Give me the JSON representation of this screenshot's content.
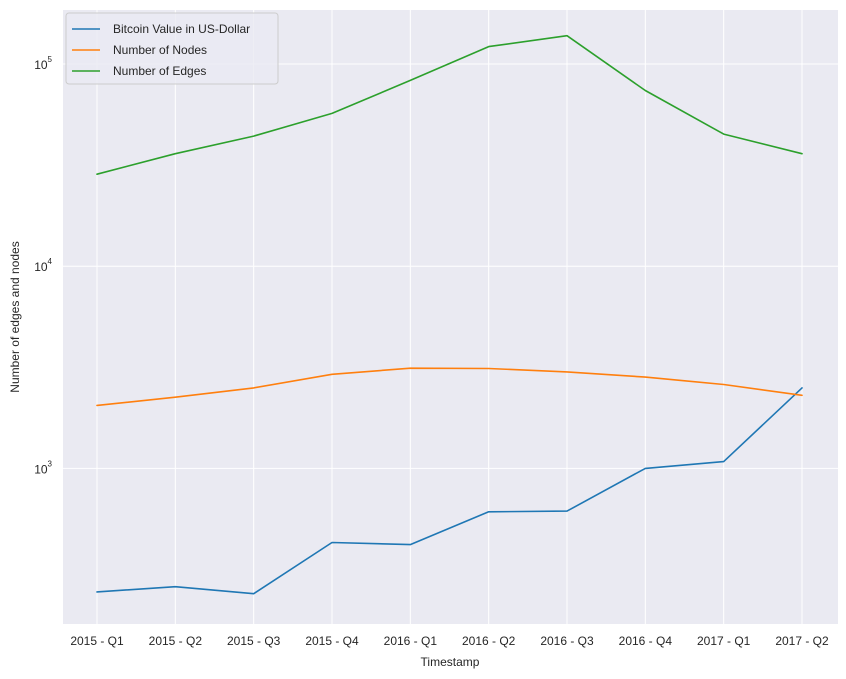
{
  "chart_data": {
    "type": "line",
    "title": "",
    "xlabel": "Timestamp",
    "ylabel": "Number of edges and nodes",
    "yscale": "log",
    "ylim": [
      170,
      185000
    ],
    "grid": true,
    "legend_position": "top-left",
    "categories": [
      "2015 - Q1",
      "2015 - Q2",
      "2015 - Q3",
      "2015 - Q4",
      "2016 - Q1",
      "2016 - Q2",
      "2016 - Q3",
      "2016 - Q4",
      "2017 - Q1",
      "2017 - Q2"
    ],
    "ytick_labels": [
      {
        "value": 1000,
        "base": "10",
        "exp": "3"
      },
      {
        "value": 10000,
        "base": "10",
        "exp": "4"
      },
      {
        "value": 100000,
        "base": "10",
        "exp": "5"
      }
    ],
    "series": [
      {
        "name": "Bitcoin Value in US-Dollar",
        "color": "#1f77b4",
        "values": [
          245,
          260,
          240,
          430,
          420,
          610,
          615,
          1000,
          1080,
          2500
        ]
      },
      {
        "name": "Number of Nodes",
        "color": "#ff7f0e",
        "values": [
          2050,
          2250,
          2500,
          2920,
          3130,
          3120,
          3000,
          2830,
          2600,
          2300
        ]
      },
      {
        "name": "Number of Edges",
        "color": "#2ca02c",
        "values": [
          28500,
          36000,
          44000,
          57000,
          83000,
          122000,
          138000,
          74000,
          45000,
          36000
        ]
      }
    ]
  }
}
